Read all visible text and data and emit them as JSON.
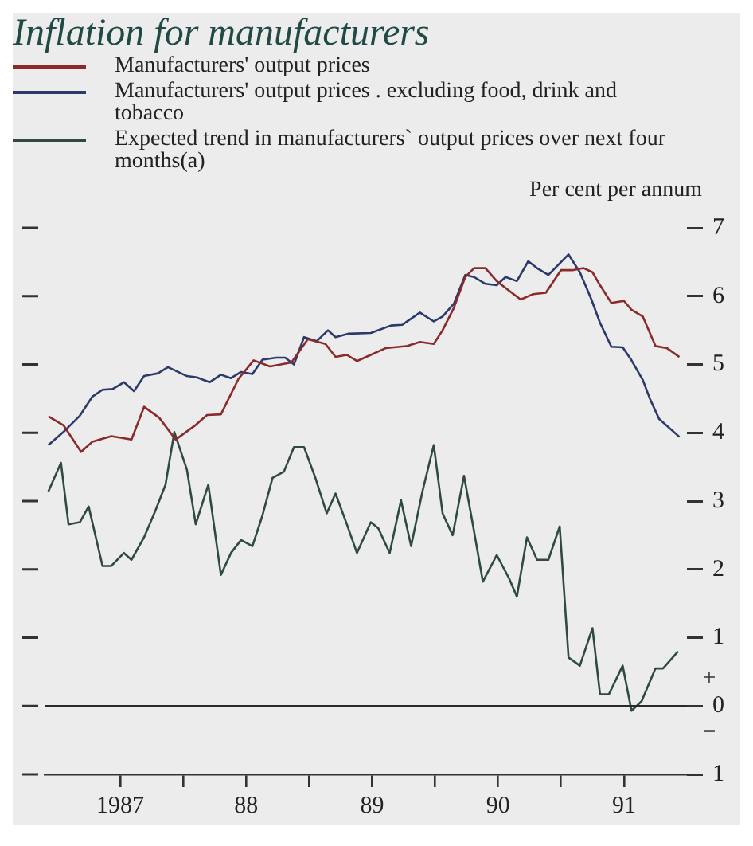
{
  "chart_data": {
    "type": "line",
    "title": "Inflation for manufacturers",
    "ylabel": "Per cent per annum",
    "legend": "top left",
    "line_style": "solid",
    "marker": "none",
    "grid": false,
    "xlim": [
      1986.4,
      1991.5
    ],
    "xticks": [
      {
        "value": 1987,
        "label": "1987"
      },
      {
        "value": 1987.5,
        "label": null
      },
      {
        "value": 1988,
        "label": "88"
      },
      {
        "value": 1988.5,
        "label": null
      },
      {
        "value": 1989,
        "label": "89"
      },
      {
        "value": 1989.5,
        "label": null
      },
      {
        "value": 1990,
        "label": "90"
      },
      {
        "value": 1990.5,
        "label": null
      },
      {
        "value": 1991,
        "label": "91"
      }
    ],
    "ylim": [
      -1,
      7
    ],
    "yticks": [
      {
        "value": -1,
        "label": "1"
      },
      0,
      1,
      2,
      3,
      4,
      5,
      6,
      7
    ],
    "ref_lines": [
      {
        "axis": "y",
        "value": 0,
        "color": "#2a2a2a"
      }
    ],
    "annotations": [
      "+",
      "−"
    ],
    "series": [
      {
        "name": "Manufacturers' output prices",
        "color": "#8b2a2a",
        "x": [
          1986.43,
          1986.55,
          1986.69,
          1986.78,
          1986.93,
          1987.09,
          1987.19,
          1987.31,
          1987.44,
          1987.59,
          1987.69,
          1987.8,
          1987.94,
          1988.06,
          1988.19,
          1988.36,
          1988.49,
          1988.63,
          1988.71,
          1988.8,
          1988.88,
          1988.99,
          1989.11,
          1989.28,
          1989.38,
          1989.49,
          1989.56,
          1989.65,
          1989.74,
          1989.81,
          1989.9,
          1989.99,
          1990.06,
          1990.18,
          1990.28,
          1990.38,
          1990.5,
          1990.59,
          1990.68,
          1990.75,
          1990.81,
          1990.9,
          1991.0,
          1991.06,
          1991.15,
          1991.25,
          1991.34,
          1991.44
        ],
        "values": [
          4.24,
          4.11,
          3.72,
          3.87,
          3.95,
          3.9,
          4.38,
          4.22,
          3.9,
          4.1,
          4.26,
          4.27,
          4.79,
          5.06,
          4.97,
          5.03,
          5.37,
          5.3,
          5.11,
          5.14,
          5.05,
          5.14,
          5.24,
          5.27,
          5.33,
          5.3,
          5.5,
          5.83,
          6.28,
          6.41,
          6.41,
          6.22,
          6.12,
          5.95,
          6.03,
          6.05,
          6.38,
          6.38,
          6.41,
          6.35,
          6.16,
          5.9,
          5.93,
          5.8,
          5.7,
          5.27,
          5.24,
          5.11
        ]
      },
      {
        "name": "Manufacturers' output prices . excluding food, drink and tobacco",
        "color": "#2b3a6b",
        "x": [
          1986.43,
          1986.56,
          1986.68,
          1986.78,
          1986.86,
          1986.94,
          1987.03,
          1987.11,
          1987.19,
          1987.3,
          1987.38,
          1987.53,
          1987.61,
          1987.71,
          1987.8,
          1987.88,
          1987.96,
          1988.05,
          1988.13,
          1988.24,
          1988.31,
          1988.38,
          1988.46,
          1988.56,
          1988.65,
          1988.71,
          1988.81,
          1988.99,
          1989.15,
          1989.24,
          1989.38,
          1989.49,
          1989.56,
          1989.65,
          1989.74,
          1989.81,
          1989.9,
          1989.99,
          1990.06,
          1990.15,
          1990.24,
          1990.31,
          1990.4,
          1990.49,
          1990.56,
          1990.65,
          1990.74,
          1990.81,
          1990.9,
          1990.99,
          1991.06,
          1991.15,
          1991.21,
          1991.28,
          1991.44
        ],
        "values": [
          3.82,
          4.03,
          4.25,
          4.53,
          4.63,
          4.64,
          4.74,
          4.61,
          4.83,
          4.87,
          4.96,
          4.83,
          4.81,
          4.74,
          4.85,
          4.8,
          4.89,
          4.86,
          5.07,
          5.1,
          5.1,
          5.0,
          5.4,
          5.34,
          5.5,
          5.4,
          5.45,
          5.46,
          5.57,
          5.58,
          5.76,
          5.63,
          5.7,
          5.89,
          6.31,
          6.28,
          6.18,
          6.16,
          6.28,
          6.22,
          6.51,
          6.41,
          6.31,
          6.48,
          6.61,
          6.35,
          5.96,
          5.61,
          5.26,
          5.25,
          5.06,
          4.77,
          4.48,
          4.2,
          3.94
        ]
      },
      {
        "name": "Expected trend in manufacturers` output prices over next four months(a)",
        "color": "#2f4a45",
        "x": [
          1986.43,
          1986.53,
          1986.59,
          1986.68,
          1986.75,
          1986.86,
          1986.93,
          1987.03,
          1987.09,
          1987.19,
          1987.28,
          1987.36,
          1987.43,
          1987.53,
          1987.6,
          1987.7,
          1987.8,
          1987.88,
          1987.96,
          1988.05,
          1988.13,
          1988.21,
          1988.3,
          1988.38,
          1988.46,
          1988.55,
          1988.64,
          1988.71,
          1988.8,
          1988.88,
          1988.99,
          1989.05,
          1989.14,
          1989.23,
          1989.31,
          1989.4,
          1989.49,
          1989.56,
          1989.64,
          1989.73,
          1989.8,
          1989.88,
          1989.99,
          1990.09,
          1990.15,
          1990.23,
          1990.31,
          1990.4,
          1990.49,
          1990.56,
          1990.65,
          1990.75,
          1990.81,
          1990.88,
          1990.99,
          1991.06,
          1991.14,
          1991.25,
          1991.31,
          1991.43
        ],
        "values": [
          3.14,
          3.56,
          2.66,
          2.69,
          2.92,
          2.05,
          2.05,
          2.24,
          2.14,
          2.47,
          2.86,
          3.24,
          4.01,
          3.46,
          2.66,
          3.24,
          1.92,
          2.24,
          2.43,
          2.34,
          2.79,
          3.34,
          3.43,
          3.79,
          3.79,
          3.34,
          2.82,
          3.11,
          2.66,
          2.24,
          2.69,
          2.6,
          2.24,
          3.01,
          2.34,
          3.14,
          3.82,
          2.82,
          2.5,
          3.37,
          2.66,
          1.82,
          2.21,
          1.86,
          1.6,
          2.47,
          2.14,
          2.14,
          2.63,
          0.71,
          0.59,
          1.14,
          0.17,
          0.17,
          0.59,
          -0.07,
          0.07,
          0.55,
          0.55,
          0.8
        ]
      }
    ]
  }
}
